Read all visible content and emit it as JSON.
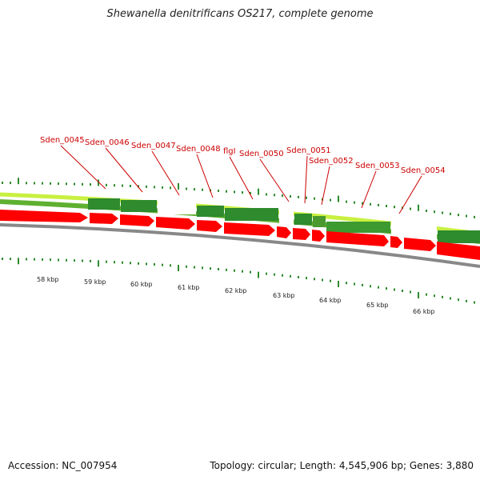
{
  "title": "Shewanella denitrificans OS217, complete genome",
  "accession_label": "Accession: NC_007954",
  "summary_label": "Topology: circular; Length: 4,545,906 bp; Genes: 3,880",
  "gene_labels": [
    "Sden_0045",
    "Sden_0046",
    "Sden_0047",
    "Sden_0048",
    "flgI",
    "Sden_0050",
    "Sden_0051",
    "Sden_0052",
    "Sden_0053",
    "Sden_0054"
  ],
  "kbp_ticks": [
    "58 kbp",
    "59 kbp",
    "60 kbp",
    "61 kbp",
    "62 kbp",
    "63 kbp",
    "64 kbp",
    "65 kbp",
    "66 kbp"
  ],
  "colors": {
    "label_red": "#cc0000",
    "cds_red": "#ff0000",
    "dark_green": "#2e8b2e",
    "light_green": "#a8e030",
    "backbone": "#888888"
  }
}
